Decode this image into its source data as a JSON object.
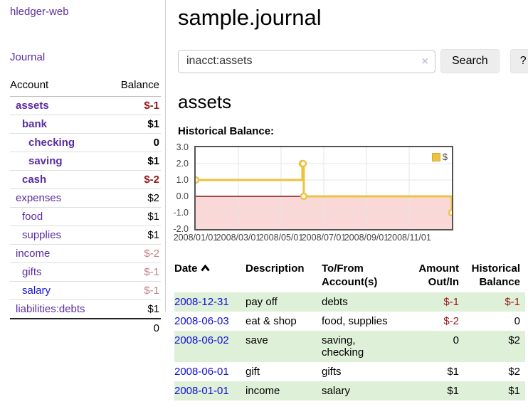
{
  "sidebar": {
    "brand": "hledger-web",
    "nav_journal": "Journal",
    "accounts_table": {
      "col_account": "Account",
      "col_balance": "Balance",
      "rows": [
        {
          "name": "assets",
          "balance": "$-1"
        },
        {
          "name": "bank",
          "balance": "$1"
        },
        {
          "name": "checking",
          "balance": "0"
        },
        {
          "name": "saving",
          "balance": "$1"
        },
        {
          "name": "cash",
          "balance": "$-2"
        },
        {
          "name": "expenses",
          "balance": "$2"
        },
        {
          "name": "food",
          "balance": "$1"
        },
        {
          "name": "supplies",
          "balance": "$1"
        },
        {
          "name": "income",
          "balance": "$-2"
        },
        {
          "name": "gifts",
          "balance": "$-1"
        },
        {
          "name": "salary",
          "balance": "$-1"
        },
        {
          "name": "liabilities:debts",
          "balance": "$1"
        }
      ],
      "total": "0"
    }
  },
  "main": {
    "title": "sample.journal",
    "search": {
      "value": "inacct:assets",
      "clear_label": "×",
      "button_label": "Search",
      "help_label": "?"
    },
    "account_heading": "assets",
    "chart_label": "Historical Balance:",
    "register": {
      "headers": {
        "date": "Date",
        "sort_icon": "chevron-up",
        "description": "Description",
        "account": "To/From Account(s)",
        "amount": "Amount Out/In",
        "balance": "Historical Balance"
      },
      "rows": [
        {
          "date": "2008-12-31",
          "description": "pay off",
          "account": "debts",
          "amount": "$-1",
          "balance": "$-1"
        },
        {
          "date": "2008-06-03",
          "description": "eat & shop",
          "account": "food, supplies",
          "amount": "$-2",
          "balance": "0"
        },
        {
          "date": "2008-06-02",
          "description": "save",
          "account": "saving,\nchecking",
          "amount": "0",
          "balance": "$2"
        },
        {
          "date": "2008-06-01",
          "description": "gift",
          "account": "gifts",
          "amount": "$1",
          "balance": "$2"
        },
        {
          "date": "2008-01-01",
          "description": "income",
          "account": "salary",
          "amount": "$1",
          "balance": "$1"
        }
      ]
    }
  },
  "chart_data": {
    "type": "line",
    "title": "Historical Balance:",
    "series": [
      {
        "name": "$",
        "color": "#edc240",
        "step": true,
        "points": [
          [
            "2008-01-01",
            1
          ],
          [
            "2008-06-01",
            2
          ],
          [
            "2008-06-02",
            2
          ],
          [
            "2008-06-03",
            0
          ],
          [
            "2008-12-31",
            -1
          ]
        ]
      }
    ],
    "x_range": [
      "2008-01-01",
      "2008-12-31"
    ],
    "ylim": [
      -2,
      3
    ],
    "yticks": [
      "3.0",
      "2.0",
      "1.0",
      "0.0",
      "-1.0",
      "-2.0"
    ],
    "xticks": [
      "2008/01/01",
      "2008/03/01",
      "2008/05/01",
      "2008/07/01",
      "2008/09/01",
      "2008/11/01"
    ],
    "legend": {
      "label": "$",
      "position": "top-right"
    },
    "grid": true,
    "negative_region_color": "#fbd8d8",
    "zero_line_color": "#8c1717"
  },
  "colors": {
    "link_purple": "#5b2da0",
    "link_blue": "#1414dd",
    "date_link_blue": "#0f0fd6",
    "negative_strong": "#96181c",
    "negative_pale": "#c07f7f",
    "row_green": "#dff0d8",
    "series_gold": "#edc240",
    "chart_negative_pink": "#fbd8d8",
    "chart_zero_line": "#8c1717"
  }
}
